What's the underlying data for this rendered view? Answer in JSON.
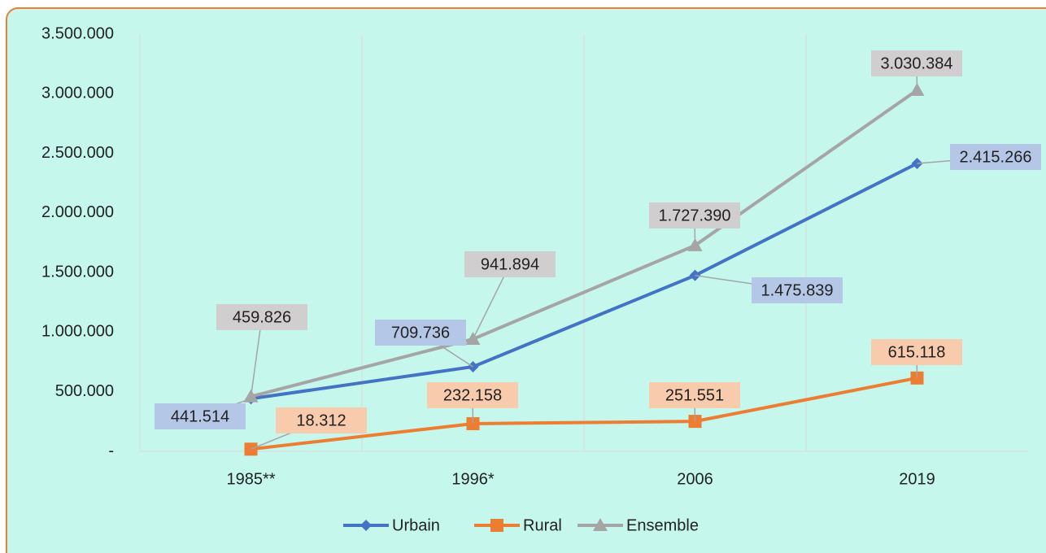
{
  "chart_data": {
    "type": "line",
    "categories": [
      "1985**",
      "1996*",
      "2006",
      "2019"
    ],
    "series": [
      {
        "name": "Urbain",
        "color": "#4472c4",
        "marker": "diamond",
        "values": [
          441514,
          709736,
          1475839,
          2415266
        ],
        "value_labels": [
          "441.514",
          "709.736",
          "1.475.839",
          "2.415.266"
        ],
        "label_color": "#b4c7e7"
      },
      {
        "name": "Rural",
        "color": "#ed7d31",
        "marker": "square",
        "values": [
          18312,
          232158,
          251551,
          615118
        ],
        "value_labels": [
          "18.312",
          "232.158",
          "251.551",
          "615.118"
        ],
        "label_color": "#f8cbad"
      },
      {
        "name": "Ensemble",
        "color": "#a5a5a5",
        "marker": "triangle",
        "values": [
          459826,
          941894,
          1727390,
          3030384
        ],
        "value_labels": [
          "459.826",
          "941.894",
          "1.727.390",
          "3.030.384"
        ],
        "label_color": "#d0cece"
      }
    ],
    "ylim": [
      0,
      3500000
    ],
    "yticks": [
      {
        "value": 0,
        "label": "-"
      },
      {
        "value": 500000,
        "label": "500.000"
      },
      {
        "value": 1000000,
        "label": "1.000.000"
      },
      {
        "value": 1500000,
        "label": "1.500.000"
      },
      {
        "value": 2000000,
        "label": "2.000.000"
      },
      {
        "value": 2500000,
        "label": "2.500.000"
      },
      {
        "value": 3000000,
        "label": "3.000.000"
      },
      {
        "value": 3500000,
        "label": "3.500.000"
      }
    ],
    "grid": true,
    "legend": "bottom"
  }
}
